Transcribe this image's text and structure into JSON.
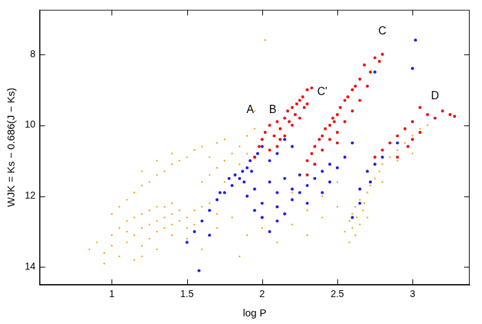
{
  "chart_data": {
    "type": "scatter",
    "x_label": "log P",
    "y_label": "WJK = Ks − 0.686(J − Ks)",
    "xlim": [
      0.52,
      3.38
    ],
    "xticks": [
      1,
      1.5,
      2,
      2.5,
      3
    ],
    "ylim": [
      6.75,
      14.5
    ],
    "yticks": [
      8,
      10,
      12,
      14
    ],
    "y_reversed": true,
    "grid": false,
    "annotations": [
      {
        "text": "A",
        "x": 1.92,
        "y": 9.57
      },
      {
        "text": "B",
        "x": 2.07,
        "y": 9.57
      },
      {
        "text": "C'",
        "x": 2.4,
        "y": 9.07
      },
      {
        "text": "C",
        "x": 2.8,
        "y": 7.35
      },
      {
        "text": "D",
        "x": 3.15,
        "y": 9.19
      }
    ],
    "series": [
      {
        "color": "#ffa41f",
        "marker": "dot",
        "x": [
          0.85,
          0.9,
          0.95,
          1.0,
          1.0,
          1.05,
          1.05,
          1.1,
          1.1,
          1.1,
          1.15,
          1.15,
          1.2,
          1.2,
          1.2,
          1.25,
          1.25,
          1.25,
          1.3,
          1.3,
          1.3,
          1.35,
          1.35,
          1.35,
          1.4,
          1.4,
          1.4,
          1.45,
          1.45,
          1.2,
          1.3,
          0.95,
          1.15,
          1.4,
          1.5,
          1.5,
          1.55,
          1.55,
          1.6,
          1.6,
          1.65,
          1.5,
          1.7,
          1.0,
          1.05,
          1.1,
          1.15,
          1.2,
          1.25,
          1.3,
          1.35,
          1.4,
          1.45,
          1.5,
          1.55,
          1.6,
          1.65,
          1.7,
          1.75,
          1.2,
          1.3,
          1.4,
          1.6,
          1.65,
          1.7,
          1.75,
          1.8,
          1.85,
          1.9,
          1.95,
          1.75,
          1.85,
          1.9,
          1.7,
          1.8,
          1.9,
          2.0,
          2.1,
          2.2,
          1.6,
          1.85,
          2.3,
          2.4,
          2.55,
          2.58,
          2.6,
          2.62,
          2.6,
          2.63,
          2.65,
          2.65,
          2.67,
          2.7,
          2.68,
          2.72,
          2.75,
          2.78,
          2.8,
          2.85,
          2.9,
          2.95,
          3.0,
          3.05,
          2.7,
          2.58,
          2.62,
          2.8,
          2.9,
          3.0,
          3.1,
          2.5,
          2.02,
          2.4,
          2.2,
          2.5,
          2.3,
          1.95
        ],
        "values": [
          13.5,
          13.3,
          13.6,
          13.1,
          13.4,
          12.9,
          13.7,
          13.0,
          12.7,
          13.3,
          12.6,
          13.1,
          12.5,
          12.9,
          13.4,
          12.4,
          12.8,
          13.2,
          12.3,
          12.7,
          13.0,
          12.3,
          12.6,
          12.9,
          12.2,
          12.5,
          12.8,
          12.4,
          12.7,
          13.7,
          13.5,
          13.9,
          13.8,
          13.1,
          12.6,
          12.9,
          12.4,
          12.8,
          12.3,
          12.7,
          12.2,
          13.2,
          12.5,
          12.5,
          12.3,
          12.1,
          11.9,
          11.7,
          11.6,
          11.4,
          11.3,
          11.1,
          11.0,
          10.9,
          10.7,
          10.6,
          10.9,
          10.5,
          10.4,
          11.3,
          11.0,
          10.8,
          11.6,
          11.4,
          11.2,
          11.0,
          10.8,
          10.6,
          10.3,
          10.1,
          11.6,
          11.1,
          10.8,
          12.9,
          12.6,
          13.1,
          12.9,
          13.3,
          12.8,
          13.5,
          13.7,
          13.1,
          12.6,
          13.0,
          12.7,
          12.5,
          12.3,
          12.9,
          12.6,
          12.1,
          12.8,
          12.4,
          11.9,
          12.2,
          11.7,
          11.5,
          11.3,
          11.1,
          10.9,
          10.7,
          10.5,
          10.3,
          10.1,
          12.6,
          13.3,
          13.1,
          11.6,
          11.0,
          10.8,
          10.0,
          12.3,
          7.6,
          12.0,
          11.9,
          11.6,
          12.4,
          9.6
        ]
      },
      {
        "color": "#1f1fe6",
        "marker": "circle",
        "x": [
          1.65,
          1.7,
          1.75,
          1.8,
          1.85,
          1.87,
          1.9,
          1.92,
          1.95,
          1.97,
          2.0,
          1.82,
          1.88,
          1.93,
          1.78,
          1.72,
          1.9,
          1.95,
          2.0,
          2.05,
          2.1,
          2.1,
          2.15,
          2.2,
          2.2,
          2.25,
          2.25,
          2.3,
          2.3,
          2.35,
          2.4,
          2.4,
          2.45,
          2.0,
          2.1,
          2.05,
          1.95,
          2.15,
          1.55,
          1.6,
          1.5,
          1.65,
          1.58,
          2.05,
          2.1,
          2.15,
          2.2,
          2.45,
          2.5,
          2.55,
          2.6,
          2.65,
          2.7,
          2.75,
          2.65,
          2.72,
          2.8,
          2.9,
          3.0,
          3.02,
          2.75,
          2.6
        ],
        "values": [
          12.4,
          12.1,
          11.9,
          11.7,
          11.5,
          11.3,
          11.2,
          11.0,
          10.9,
          10.8,
          10.6,
          11.4,
          11.6,
          11.3,
          11.5,
          11.9,
          12.0,
          11.8,
          12.2,
          11.6,
          11.9,
          12.3,
          11.5,
          11.8,
          12.1,
          11.4,
          11.9,
          11.7,
          12.2,
          11.5,
          11.3,
          11.9,
          11.1,
          12.6,
          12.7,
          13.0,
          12.4,
          12.5,
          13.0,
          12.7,
          13.3,
          13.1,
          14.1,
          11.0,
          10.8,
          10.4,
          10.6,
          11.6,
          11.2,
          10.9,
          10.5,
          11.8,
          11.3,
          11.1,
          12.2,
          11.6,
          10.9,
          10.5,
          8.4,
          7.6,
          8.5,
          12.6
        ]
      },
      {
        "color": "#ee1111",
        "marker": "circle",
        "x": [
          1.95,
          1.98,
          2.0,
          2.02,
          2.05,
          2.08,
          2.1,
          2.12,
          2.15,
          2.17,
          2.2,
          2.22,
          2.25,
          2.27,
          2.3,
          2.33,
          2.1,
          2.15,
          2.2,
          2.25,
          2.05,
          2.18,
          2.28,
          2.23,
          2.12,
          2.3,
          2.3,
          2.33,
          2.35,
          2.38,
          2.4,
          2.42,
          2.45,
          2.47,
          2.5,
          2.52,
          2.55,
          2.57,
          2.6,
          2.62,
          2.65,
          2.4,
          2.45,
          2.5,
          2.55,
          2.6,
          2.65,
          2.7,
          2.72,
          2.35,
          2.3,
          2.68,
          2.75,
          2.5,
          2.48,
          2.78,
          2.8,
          2.75,
          2.8,
          2.85,
          2.9,
          2.95,
          3.0,
          3.05,
          3.1,
          3.15,
          3.2,
          3.25,
          2.9,
          3.0,
          3.05,
          2.97,
          3.28
        ],
        "values": [
          10.9,
          10.6,
          10.4,
          10.2,
          10.0,
          10.3,
          9.9,
          10.1,
          9.8,
          9.6,
          9.5,
          9.7,
          9.3,
          9.2,
          9.0,
          8.95,
          10.6,
          10.3,
          10.0,
          9.8,
          10.7,
          9.9,
          9.5,
          9.4,
          10.4,
          9.4,
          11.0,
          10.8,
          10.6,
          10.4,
          10.3,
          10.1,
          10.0,
          9.8,
          9.7,
          9.5,
          9.3,
          9.2,
          9.0,
          8.9,
          8.7,
          10.7,
          10.4,
          10.2,
          9.9,
          9.6,
          9.3,
          8.9,
          8.5,
          11.1,
          11.4,
          8.3,
          8.1,
          10.5,
          9.9,
          8.2,
          8.0,
          10.9,
          10.7,
          10.5,
          10.3,
          10.1,
          9.9,
          10.2,
          9.7,
          9.8,
          9.6,
          9.7,
          10.9,
          10.4,
          9.5,
          10.6,
          9.75
        ]
      }
    ]
  }
}
